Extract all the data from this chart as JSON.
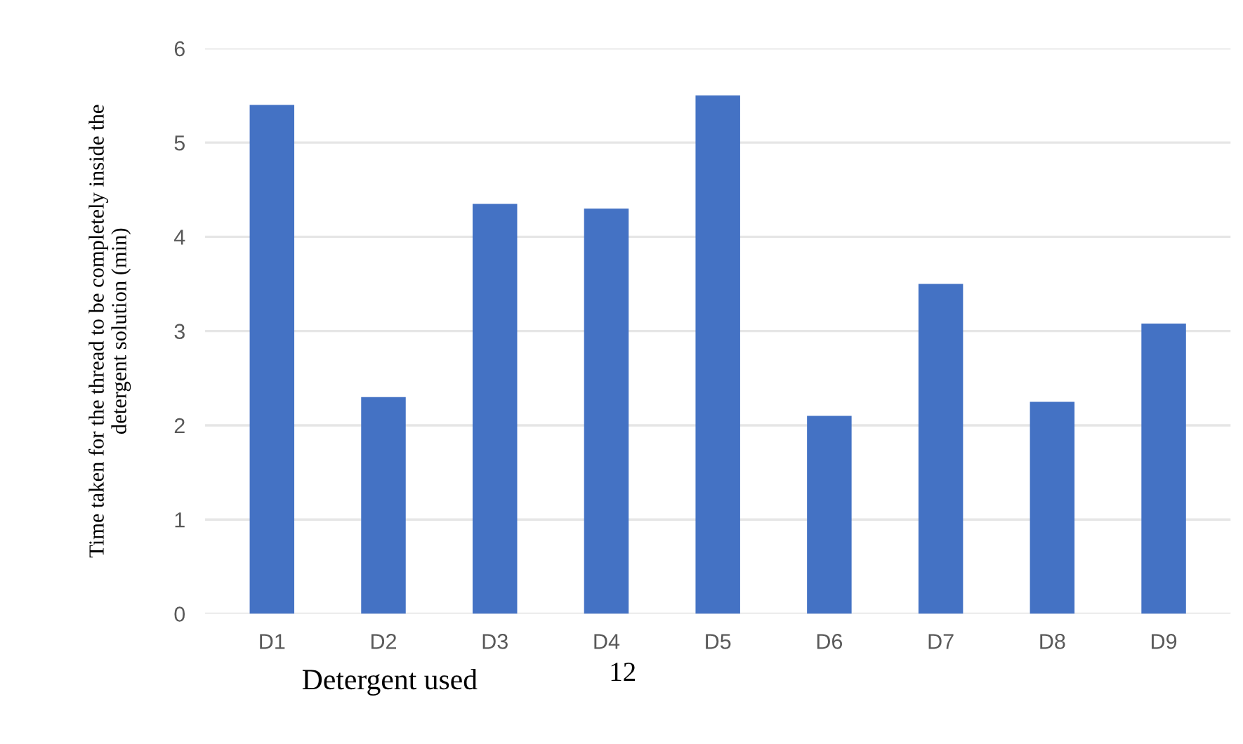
{
  "chart_data": {
    "type": "bar",
    "xlabel": "Detergent used",
    "ylabel": "Time taken for the thread to be completely inside the\ndetergent solution (min)",
    "categories": [
      "D1",
      "D2",
      "D3",
      "D4",
      "D5",
      "D6",
      "D7",
      "D8",
      "D9"
    ],
    "values": [
      5.4,
      2.3,
      4.35,
      4.3,
      5.5,
      2.1,
      3.5,
      2.25,
      3.08
    ],
    "color": "#4472c4",
    "ylim": [
      0,
      6
    ],
    "yticks": [
      0,
      1,
      2,
      3,
      4,
      5,
      6
    ],
    "grid": "y",
    "legend": false,
    "annotations": [
      "12"
    ]
  }
}
